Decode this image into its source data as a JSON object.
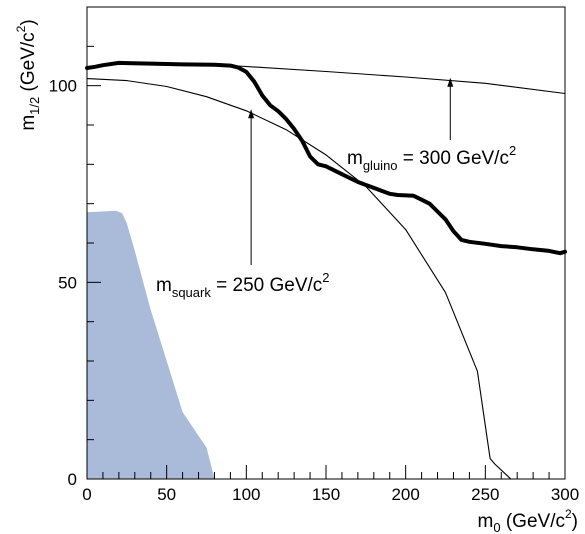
{
  "chart_data": {
    "type": "line",
    "xlabel": {
      "base": "m",
      "sub": "0",
      "unit_open": " (GeV/c",
      "unit_sup": "2",
      "unit_close": ")"
    },
    "ylabel": {
      "base": "m",
      "sub": "1/2",
      "unit_open": " (GeV/c",
      "unit_sup": "2",
      "unit_close": ")"
    },
    "xlim": [
      0,
      300
    ],
    "ylim": [
      0,
      120
    ],
    "x_ticks": [
      0,
      50,
      100,
      150,
      200,
      250,
      300
    ],
    "y_ticks": [
      0,
      50,
      100
    ],
    "grid": false,
    "series": [
      {
        "key": "thick",
        "style": "thick",
        "color": "#000000",
        "points": [
          [
            0,
            104.5
          ],
          [
            5,
            104.8
          ],
          [
            10,
            105.2
          ],
          [
            20,
            105.8
          ],
          [
            40,
            105.6
          ],
          [
            60,
            105.4
          ],
          [
            80,
            105.3
          ],
          [
            90,
            105.1
          ],
          [
            95,
            104.6
          ],
          [
            100,
            103.5
          ],
          [
            105,
            101
          ],
          [
            110,
            97.5
          ],
          [
            115,
            95
          ],
          [
            120,
            93.5
          ],
          [
            125,
            91.5
          ],
          [
            130,
            89
          ],
          [
            135,
            86
          ],
          [
            140,
            82
          ],
          [
            145,
            80
          ],
          [
            150,
            79.5
          ],
          [
            160,
            77.5
          ],
          [
            170,
            75.5
          ],
          [
            180,
            74
          ],
          [
            190,
            72.5
          ],
          [
            195,
            72.2
          ],
          [
            205,
            72
          ],
          [
            210,
            71
          ],
          [
            215,
            70
          ],
          [
            220,
            68
          ],
          [
            225,
            66
          ],
          [
            230,
            63
          ],
          [
            235,
            60.8
          ],
          [
            240,
            60.3
          ],
          [
            250,
            59.8
          ],
          [
            260,
            59.2
          ],
          [
            270,
            58.9
          ],
          [
            280,
            58.4
          ],
          [
            290,
            58
          ],
          [
            297,
            57.4
          ],
          [
            300,
            57.8
          ]
        ]
      },
      {
        "key": "gluino",
        "style": "thin",
        "color": "#000000",
        "points": [
          [
            95,
            105
          ],
          [
            150,
            103.6
          ],
          [
            200,
            102.2
          ],
          [
            250,
            100.6
          ],
          [
            300,
            98
          ]
        ]
      },
      {
        "key": "squark",
        "style": "thin",
        "color": "#000000",
        "points": [
          [
            0,
            101.8
          ],
          [
            25,
            101.3
          ],
          [
            50,
            99.8
          ],
          [
            75,
            97.2
          ],
          [
            100,
            93.6
          ],
          [
            125,
            88.8
          ],
          [
            150,
            82.4
          ],
          [
            175,
            74.4
          ],
          [
            200,
            63.4
          ],
          [
            225,
            47.4
          ],
          [
            245,
            27.4
          ],
          [
            253,
            5.2
          ],
          [
            256,
            3.8
          ],
          [
            266,
            0
          ]
        ]
      },
      {
        "key": "excluded",
        "style": "filled",
        "color": "#a9bbd8",
        "points": [
          [
            0,
            67.8
          ],
          [
            10,
            68
          ],
          [
            18,
            68.2
          ],
          [
            22,
            67.6
          ],
          [
            25,
            65
          ],
          [
            30,
            58
          ],
          [
            40,
            43
          ],
          [
            50,
            30
          ],
          [
            60,
            17
          ],
          [
            70,
            11
          ],
          [
            75,
            8
          ],
          [
            80,
            0
          ],
          [
            0,
            0
          ]
        ]
      }
    ],
    "annotations": [
      {
        "key": "gluino",
        "base": "m",
        "sub": "gluino",
        "value": " = 300 GeV/c",
        "sup": "2",
        "arrow_to": [
          228,
          102
        ]
      },
      {
        "key": "squark",
        "base": "m",
        "sub": "squark",
        "value": " = 250 GeV/c",
        "sup": "2",
        "arrow_to": [
          103,
          94
        ]
      }
    ]
  }
}
